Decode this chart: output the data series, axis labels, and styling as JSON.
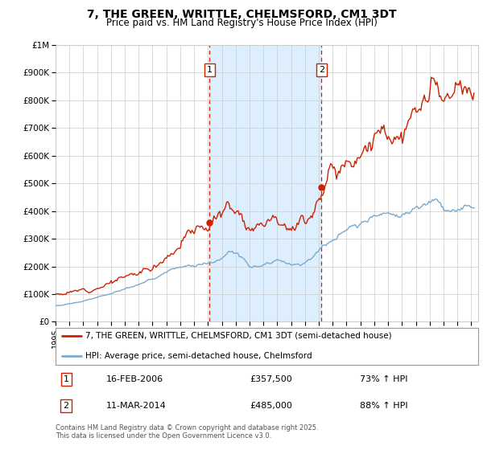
{
  "title": "7, THE GREEN, WRITTLE, CHELMSFORD, CM1 3DT",
  "subtitle": "Price paid vs. HM Land Registry's House Price Index (HPI)",
  "legend_line1": "7, THE GREEN, WRITTLE, CHELMSFORD, CM1 3DT (semi-detached house)",
  "legend_line2": "HPI: Average price, semi-detached house, Chelmsford",
  "transaction1_date": "16-FEB-2006",
  "transaction1_price": "£357,500",
  "transaction1_hpi": "73% ↑ HPI",
  "transaction1_year": 2006.12,
  "transaction1_value": 357500,
  "transaction2_date": "11-MAR-2014",
  "transaction2_price": "£485,000",
  "transaction2_hpi": "88% ↑ HPI",
  "transaction2_year": 2014.2,
  "transaction2_value": 485000,
  "footer": "Contains HM Land Registry data © Crown copyright and database right 2025.\nThis data is licensed under the Open Government Licence v3.0.",
  "red_color": "#cc2200",
  "blue_color": "#7aaad0",
  "shade_color": "#ddeeff",
  "background_color": "#ffffff",
  "grid_color": "#cccccc",
  "ylim_max": 1000000,
  "xlim_min": 1995,
  "xlim_max": 2025.5
}
